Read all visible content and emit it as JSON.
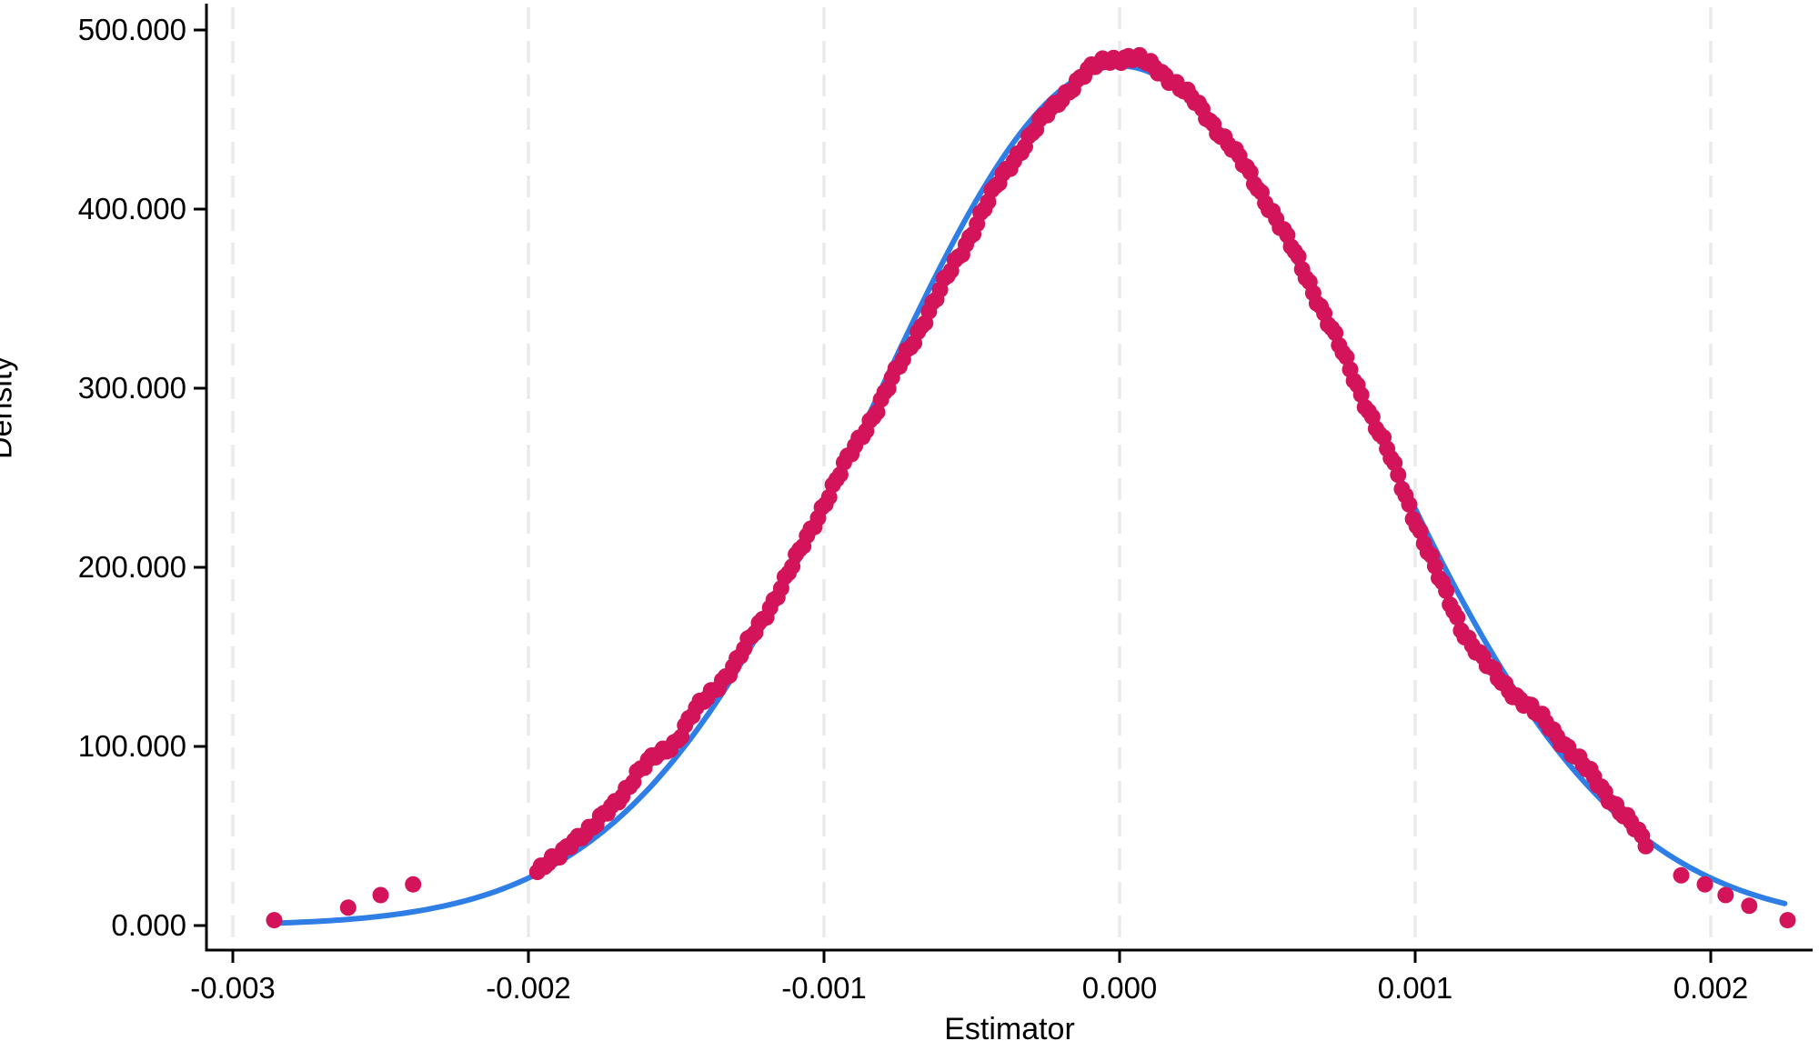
{
  "chart_data": {
    "type": "scatter",
    "title": "",
    "xlabel": "Estimator",
    "ylabel": "Density",
    "grid": "vertical-dashed-gridlines-only",
    "legend": "none",
    "xlim": [
      -0.00332,
      0.00238
    ],
    "ylim": [
      0,
      515
    ],
    "x_tick_values": [
      -0.003,
      -0.002,
      -0.001,
      0.0,
      0.001,
      0.002
    ],
    "x_tick_labels": [
      "-0.003",
      "-0.002",
      "-0.001",
      "0.000",
      "0.001",
      "0.002"
    ],
    "y_tick_values": [
      0,
      100,
      200,
      300,
      400,
      500
    ],
    "y_tick_labels": [
      "0.000",
      "100.000",
      "200.000",
      "300.000",
      "400.000",
      "500.000"
    ],
    "colors": {
      "normal_curve": "#2E7EE5",
      "kde_dots": "#D4145A",
      "gridline": "#EAEAEA",
      "axis": "#000000",
      "background": "#FFFFFF"
    },
    "series": [
      {
        "name": "normal-density-curve",
        "type": "line",
        "color": "#2E7EE5",
        "stroke_width": 6,
        "model": "gaussian",
        "mean": 0.0,
        "sd": 0.000831,
        "peak_density": 480,
        "x_start": -0.00287,
        "x_end": 0.00226
      },
      {
        "name": "kernel-density-estimate-dots",
        "type": "scatter",
        "color": "#D4145A",
        "dot_radius_px": 9,
        "peak_density": 485,
        "left_outlier_points": [
          [
            -0.00286,
            3
          ],
          [
            -0.00261,
            10
          ],
          [
            -0.0025,
            17
          ],
          [
            -0.00239,
            23
          ]
        ],
        "right_outlier_points": [
          [
            0.0019,
            28
          ],
          [
            0.00198,
            23
          ],
          [
            0.00205,
            17
          ],
          [
            0.00213,
            11
          ],
          [
            0.00226,
            3
          ]
        ],
        "dense_band": {
          "x_start": -0.00197,
          "x_end": 0.00178,
          "x_step": 1.25e-05,
          "jitter_amplitude": 3,
          "deviation_from_normal_anchors": [
            [
              -0.00197,
              1
            ],
            [
              -0.0019,
              3
            ],
            [
              -0.00185,
              8
            ],
            [
              -0.00178,
              6
            ],
            [
              -0.0017,
              11
            ],
            [
              -0.00163,
              15
            ],
            [
              -0.00157,
              14
            ],
            [
              -0.0015,
              9
            ],
            [
              -0.00144,
              12
            ],
            [
              -0.00137,
              9
            ],
            [
              -0.0013,
              5
            ],
            [
              -0.0012,
              4
            ],
            [
              -0.0011,
              3
            ],
            [
              -0.001,
              3
            ],
            [
              -0.00092,
              0
            ],
            [
              -0.00082,
              -6
            ],
            [
              -0.00072,
              -10
            ],
            [
              -0.00062,
              -13
            ],
            [
              -0.00052,
              -14
            ],
            [
              -0.00042,
              -11
            ],
            [
              -0.00032,
              -9
            ],
            [
              -0.00022,
              -6
            ],
            [
              -0.00012,
              0
            ],
            [
              -4e-05,
              4
            ],
            [
              4e-05,
              5
            ],
            [
              0.00012,
              4
            ],
            [
              0.00022,
              2
            ],
            [
              0.00032,
              1
            ],
            [
              0.00042,
              2
            ],
            [
              0.00052,
              3
            ],
            [
              0.00062,
              3
            ],
            [
              0.00072,
              2
            ],
            [
              0.00082,
              1
            ],
            [
              0.00092,
              0
            ],
            [
              0.001,
              -6
            ],
            [
              0.00108,
              -12
            ],
            [
              0.00116,
              -16
            ],
            [
              0.00124,
              -12
            ],
            [
              0.0013,
              -6
            ],
            [
              0.00137,
              1
            ],
            [
              0.00144,
              7
            ],
            [
              0.00152,
              9
            ],
            [
              0.0016,
              8
            ],
            [
              0.00168,
              5
            ],
            [
              0.00173,
              2
            ],
            [
              0.00178,
              -3
            ]
          ]
        }
      }
    ]
  }
}
